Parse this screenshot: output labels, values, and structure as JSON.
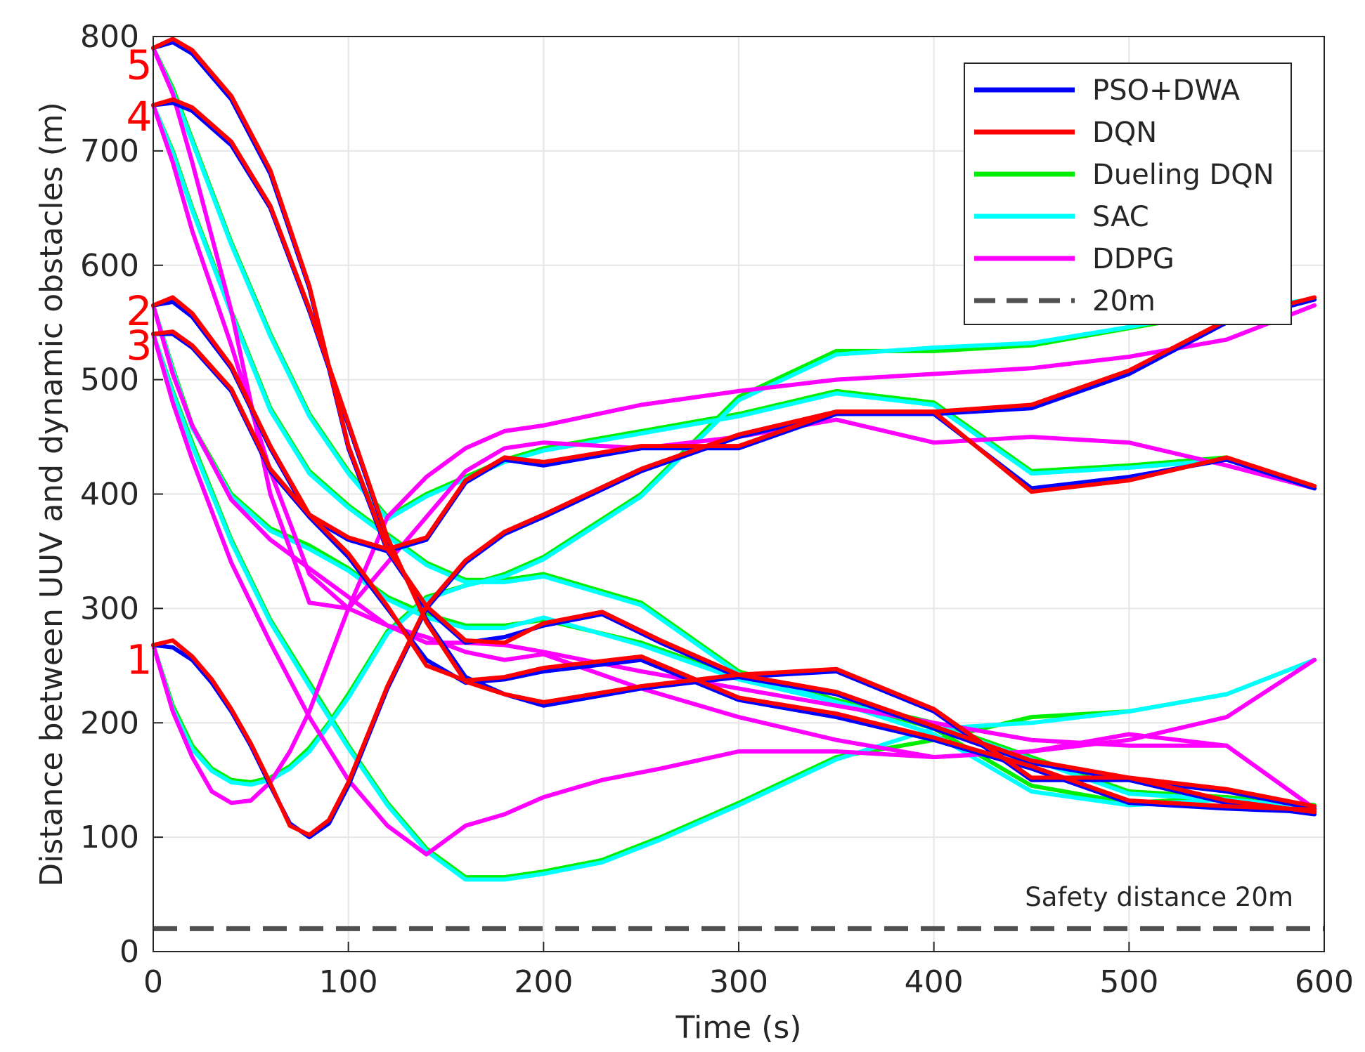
{
  "chart_data": {
    "type": "line",
    "title": "",
    "xlabel": "Time  (s)",
    "ylabel": "Distance between UUV and dynamic obstacles (m)",
    "xlim": [
      0,
      600
    ],
    "ylim": [
      0,
      800
    ],
    "xticks": [
      0,
      100,
      200,
      300,
      400,
      500,
      600
    ],
    "yticks": [
      0,
      100,
      200,
      300,
      400,
      500,
      600,
      700,
      800
    ],
    "grid": true,
    "legend_position": "top-right",
    "legend": [
      {
        "name": "PSO+DWA",
        "color": "#0000ff",
        "style": "solid"
      },
      {
        "name": "DQN",
        "color": "#ff0000",
        "style": "solid"
      },
      {
        "name": "Dueling DQN",
        "color": "#00ee00",
        "style": "solid"
      },
      {
        "name": "SAC",
        "color": "#00ffff",
        "style": "solid"
      },
      {
        "name": "DDPG",
        "color": "#ff00ff",
        "style": "solid"
      },
      {
        "name": "20m",
        "color": "#505050",
        "style": "dashed"
      }
    ],
    "reference_line": {
      "y": 20,
      "annotation": "Safety distance  20m"
    },
    "obstacle_labels": [
      {
        "text": "5",
        "y": 775
      },
      {
        "text": "4",
        "y": 730
      },
      {
        "text": "2",
        "y": 560
      },
      {
        "text": "3",
        "y": 530
      },
      {
        "text": "1",
        "y": 255
      }
    ],
    "series": [
      {
        "name": "PSO+DWA",
        "obstacle": 1,
        "x": [
          0,
          10,
          20,
          30,
          40,
          50,
          60,
          70,
          80,
          90,
          100,
          120,
          140,
          160,
          180,
          200,
          250,
          300,
          350,
          400,
          450,
          500,
          550,
          595
        ],
        "y": [
          268,
          266,
          255,
          235,
          210,
          180,
          145,
          112,
          100,
          112,
          145,
          230,
          300,
          340,
          365,
          380,
          420,
          450,
          470,
          470,
          475,
          505,
          550,
          570
        ]
      },
      {
        "name": "DQN",
        "obstacle": 1,
        "x": [
          0,
          10,
          20,
          30,
          40,
          50,
          60,
          70,
          80,
          90,
          100,
          120,
          140,
          160,
          180,
          200,
          250,
          300,
          350,
          400,
          450,
          500,
          550,
          595
        ],
        "y": [
          268,
          272,
          258,
          238,
          212,
          182,
          147,
          110,
          102,
          115,
          148,
          232,
          302,
          342,
          367,
          382,
          422,
          452,
          472,
          472,
          478,
          508,
          552,
          572
        ]
      },
      {
        "name": "Dueling DQN",
        "obstacle": 1,
        "x": [
          0,
          10,
          20,
          30,
          40,
          50,
          60,
          70,
          80,
          90,
          100,
          120,
          140,
          160,
          180,
          200,
          250,
          300,
          350,
          400,
          450,
          500,
          550,
          595
        ],
        "y": [
          268,
          215,
          180,
          160,
          150,
          148,
          152,
          162,
          178,
          200,
          225,
          280,
          310,
          320,
          330,
          345,
          400,
          485,
          525,
          525,
          530,
          545,
          560,
          570
        ]
      },
      {
        "name": "SAC",
        "obstacle": 1,
        "x": [
          0,
          10,
          20,
          30,
          40,
          50,
          60,
          70,
          80,
          90,
          100,
          120,
          140,
          160,
          180,
          200,
          250,
          300,
          350,
          400,
          450,
          500,
          550,
          595
        ],
        "y": [
          268,
          212,
          177,
          158,
          148,
          146,
          150,
          160,
          175,
          198,
          222,
          278,
          308,
          320,
          328,
          343,
          398,
          482,
          522,
          528,
          532,
          546,
          562,
          570
        ]
      },
      {
        "name": "DDPG",
        "obstacle": 1,
        "x": [
          0,
          10,
          20,
          30,
          40,
          50,
          60,
          70,
          80,
          90,
          100,
          120,
          140,
          160,
          180,
          200,
          250,
          300,
          350,
          400,
          450,
          500,
          550,
          595
        ],
        "y": [
          268,
          210,
          170,
          140,
          130,
          132,
          148,
          175,
          210,
          255,
          300,
          380,
          415,
          440,
          455,
          460,
          478,
          490,
          500,
          505,
          510,
          520,
          535,
          565
        ]
      },
      {
        "name": "PSO+DWA",
        "obstacle": 2,
        "x": [
          0,
          10,
          20,
          40,
          60,
          80,
          100,
          120,
          140,
          160,
          180,
          200,
          250,
          300,
          350,
          400,
          450,
          500,
          550,
          595
        ],
        "y": [
          565,
          568,
          555,
          510,
          440,
          380,
          345,
          300,
          255,
          235,
          238,
          245,
          255,
          220,
          205,
          185,
          160,
          130,
          125,
          122
        ]
      },
      {
        "name": "DQN",
        "obstacle": 2,
        "x": [
          0,
          10,
          20,
          40,
          60,
          80,
          100,
          120,
          140,
          160,
          180,
          200,
          250,
          300,
          350,
          400,
          450,
          500,
          550,
          595
        ],
        "y": [
          565,
          572,
          558,
          512,
          442,
          382,
          348,
          302,
          250,
          237,
          240,
          248,
          258,
          222,
          208,
          187,
          162,
          132,
          127,
          124
        ]
      },
      {
        "name": "Dueling DQN",
        "obstacle": 2,
        "x": [
          0,
          10,
          20,
          40,
          60,
          80,
          100,
          120,
          140,
          160,
          180,
          200,
          250,
          300,
          350,
          400,
          450,
          500,
          550,
          595
        ],
        "y": [
          565,
          510,
          460,
          400,
          370,
          355,
          335,
          310,
          295,
          285,
          285,
          290,
          270,
          240,
          220,
          195,
          145,
          130,
          135,
          128
        ]
      },
      {
        "name": "SAC",
        "obstacle": 2,
        "x": [
          0,
          10,
          20,
          40,
          60,
          80,
          100,
          120,
          140,
          160,
          180,
          200,
          250,
          300,
          350,
          400,
          450,
          500,
          550,
          595
        ],
        "y": [
          565,
          508,
          458,
          398,
          368,
          352,
          333,
          308,
          292,
          283,
          283,
          292,
          268,
          238,
          218,
          190,
          140,
          128,
          133,
          126
        ]
      },
      {
        "name": "DDPG",
        "obstacle": 2,
        "x": [
          0,
          10,
          20,
          40,
          60,
          80,
          100,
          120,
          140,
          160,
          180,
          200,
          250,
          300,
          350,
          400,
          450,
          500,
          550,
          595
        ],
        "y": [
          565,
          505,
          460,
          395,
          360,
          335,
          310,
          285,
          270,
          270,
          268,
          262,
          245,
          230,
          215,
          200,
          185,
          180,
          180,
          125
        ]
      },
      {
        "name": "PSO+DWA",
        "obstacle": 3,
        "x": [
          0,
          10,
          20,
          40,
          60,
          80,
          100,
          120,
          140,
          160,
          180,
          200,
          230,
          260,
          300,
          350,
          400,
          450,
          500,
          550,
          595
        ],
        "y": [
          540,
          540,
          528,
          490,
          420,
          380,
          360,
          350,
          300,
          270,
          275,
          285,
          295,
          270,
          240,
          225,
          195,
          165,
          150,
          130,
          120
        ]
      },
      {
        "name": "DQN",
        "obstacle": 3,
        "x": [
          0,
          10,
          20,
          40,
          60,
          80,
          100,
          120,
          140,
          160,
          180,
          200,
          230,
          260,
          300,
          350,
          400,
          450,
          500,
          550,
          595
        ],
        "y": [
          540,
          542,
          530,
          492,
          422,
          382,
          362,
          352,
          302,
          272,
          270,
          287,
          297,
          272,
          242,
          227,
          197,
          167,
          152,
          132,
          122
        ]
      },
      {
        "name": "Dueling DQN",
        "obstacle": 3,
        "x": [
          0,
          10,
          20,
          40,
          60,
          80,
          100,
          120,
          140,
          160,
          180,
          200,
          230,
          260,
          300,
          350,
          400,
          450,
          500,
          550,
          595
        ],
        "y": [
          540,
          490,
          445,
          360,
          290,
          235,
          180,
          130,
          90,
          65,
          65,
          70,
          80,
          100,
          130,
          170,
          185,
          205,
          210,
          225,
          255
        ]
      },
      {
        "name": "SAC",
        "obstacle": 3,
        "x": [
          0,
          10,
          20,
          40,
          60,
          80,
          100,
          120,
          140,
          160,
          180,
          200,
          230,
          260,
          300,
          350,
          400,
          450,
          500,
          550,
          595
        ],
        "y": [
          540,
          488,
          442,
          358,
          288,
          232,
          178,
          128,
          88,
          63,
          63,
          68,
          78,
          98,
          128,
          168,
          195,
          200,
          210,
          225,
          255
        ]
      },
      {
        "name": "DDPG",
        "obstacle": 3,
        "x": [
          0,
          10,
          20,
          40,
          60,
          80,
          100,
          120,
          140,
          160,
          180,
          200,
          230,
          260,
          300,
          350,
          400,
          450,
          500,
          550,
          595
        ],
        "y": [
          540,
          480,
          430,
          340,
          270,
          205,
          150,
          110,
          85,
          110,
          120,
          135,
          150,
          160,
          175,
          175,
          170,
          175,
          185,
          205,
          255
        ]
      },
      {
        "name": "PSO+DWA",
        "obstacle": 4,
        "x": [
          0,
          10,
          20,
          40,
          60,
          80,
          100,
          120,
          140,
          160,
          180,
          200,
          250,
          300,
          350,
          400,
          450,
          500,
          550,
          595
        ],
        "y": [
          740,
          742,
          735,
          705,
          650,
          560,
          460,
          360,
          290,
          240,
          225,
          215,
          230,
          240,
          245,
          210,
          150,
          150,
          140,
          125
        ]
      },
      {
        "name": "DQN",
        "obstacle": 4,
        "x": [
          0,
          10,
          20,
          40,
          60,
          80,
          100,
          120,
          140,
          160,
          180,
          200,
          250,
          300,
          350,
          400,
          450,
          500,
          550,
          595
        ],
        "y": [
          740,
          745,
          738,
          708,
          652,
          562,
          462,
          362,
          288,
          236,
          225,
          218,
          232,
          242,
          247,
          212,
          152,
          152,
          142,
          127
        ]
      },
      {
        "name": "Dueling DQN",
        "obstacle": 4,
        "x": [
          0,
          10,
          20,
          40,
          60,
          80,
          100,
          120,
          140,
          160,
          180,
          200,
          250,
          300,
          350,
          400,
          450,
          500,
          550,
          595
        ],
        "y": [
          740,
          700,
          650,
          560,
          475,
          420,
          390,
          365,
          340,
          325,
          325,
          330,
          305,
          245,
          220,
          200,
          170,
          140,
          135,
          125
        ]
      },
      {
        "name": "SAC",
        "obstacle": 4,
        "x": [
          0,
          10,
          20,
          40,
          60,
          80,
          100,
          120,
          140,
          160,
          180,
          200,
          250,
          300,
          350,
          400,
          450,
          500,
          550,
          595
        ],
        "y": [
          740,
          698,
          648,
          558,
          473,
          418,
          388,
          363,
          338,
          323,
          323,
          328,
          303,
          243,
          218,
          198,
          168,
          138,
          133,
          123
        ]
      },
      {
        "name": "DDPG",
        "obstacle": 4,
        "x": [
          0,
          10,
          20,
          40,
          60,
          80,
          100,
          120,
          140,
          160,
          180,
          200,
          250,
          300,
          350,
          400,
          450,
          500,
          550,
          595
        ],
        "y": [
          740,
          690,
          630,
          530,
          420,
          330,
          300,
          285,
          275,
          262,
          255,
          260,
          230,
          205,
          185,
          170,
          175,
          190,
          180,
          125
        ]
      },
      {
        "name": "PSO+DWA",
        "obstacle": 5,
        "x": [
          0,
          10,
          20,
          40,
          60,
          80,
          100,
          120,
          140,
          160,
          180,
          200,
          250,
          300,
          350,
          400,
          450,
          500,
          550,
          595
        ],
        "y": [
          790,
          795,
          785,
          745,
          680,
          580,
          440,
          350,
          360,
          410,
          430,
          425,
          440,
          440,
          470,
          470,
          405,
          415,
          430,
          405
        ]
      },
      {
        "name": "DQN",
        "obstacle": 5,
        "x": [
          0,
          10,
          20,
          40,
          60,
          80,
          100,
          120,
          140,
          160,
          180,
          200,
          250,
          300,
          350,
          400,
          450,
          500,
          550,
          595
        ],
        "y": [
          790,
          798,
          788,
          748,
          683,
          582,
          442,
          352,
          362,
          412,
          432,
          428,
          442,
          442,
          472,
          472,
          402,
          412,
          432,
          407
        ]
      },
      {
        "name": "Dueling DQN",
        "obstacle": 5,
        "x": [
          0,
          10,
          20,
          40,
          60,
          80,
          100,
          120,
          140,
          160,
          180,
          200,
          250,
          300,
          350,
          400,
          450,
          500,
          550,
          595
        ],
        "y": [
          790,
          755,
          710,
          620,
          540,
          470,
          420,
          380,
          400,
          415,
          430,
          440,
          455,
          470,
          490,
          480,
          420,
          425,
          432,
          405
        ]
      },
      {
        "name": "SAC",
        "obstacle": 5,
        "x": [
          0,
          10,
          20,
          40,
          60,
          80,
          100,
          120,
          140,
          160,
          180,
          200,
          250,
          300,
          350,
          400,
          450,
          500,
          550,
          595
        ],
        "y": [
          790,
          752,
          708,
          618,
          538,
          468,
          418,
          378,
          398,
          413,
          428,
          438,
          453,
          468,
          488,
          478,
          418,
          423,
          430,
          405
        ]
      },
      {
        "name": "DDPG",
        "obstacle": 5,
        "x": [
          0,
          10,
          20,
          40,
          60,
          80,
          100,
          120,
          140,
          160,
          180,
          200,
          250,
          300,
          350,
          400,
          450,
          500,
          550,
          595
        ],
        "y": [
          790,
          750,
          690,
          560,
          400,
          305,
          300,
          340,
          380,
          420,
          440,
          445,
          440,
          450,
          465,
          445,
          450,
          445,
          425,
          405
        ]
      }
    ]
  }
}
